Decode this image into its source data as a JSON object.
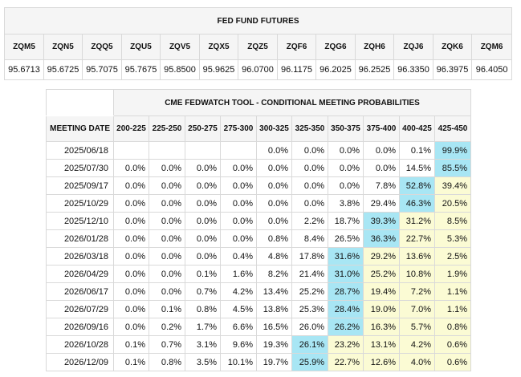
{
  "futures": {
    "title": "FED FUND FUTURES",
    "columns": [
      {
        "code": "ZQM5",
        "price": "95.6713"
      },
      {
        "code": "ZQN5",
        "price": "95.6725"
      },
      {
        "code": "ZQQ5",
        "price": "95.7075"
      },
      {
        "code": "ZQU5",
        "price": "95.7675"
      },
      {
        "code": "ZQV5",
        "price": "95.8500"
      },
      {
        "code": "ZQX5",
        "price": "95.9625"
      },
      {
        "code": "ZQZ5",
        "price": "96.0700"
      },
      {
        "code": "ZQF6",
        "price": "96.1175"
      },
      {
        "code": "ZQG6",
        "price": "96.2025"
      },
      {
        "code": "ZQH6",
        "price": "96.2525"
      },
      {
        "code": "ZQJ6",
        "price": "96.3350"
      },
      {
        "code": "ZQK6",
        "price": "96.3975"
      },
      {
        "code": "ZQM6",
        "price": "96.4050"
      }
    ]
  },
  "fedwatch": {
    "title": "CME FEDWATCH TOOL - CONDITIONAL MEETING PROBABILITIES",
    "date_header": "MEETING DATE",
    "ranges": [
      "200-225",
      "225-250",
      "250-275",
      "275-300",
      "300-325",
      "325-350",
      "350-375",
      "375-400",
      "400-425",
      "425-450"
    ],
    "highlight_colors": {
      "blue": "#a8e6f4",
      "yellow": "#fbfbd4"
    },
    "rows": [
      {
        "date": "2025/06/18",
        "values": [
          "",
          "",
          "",
          "",
          "0.0%",
          "0.0%",
          "0.0%",
          "0.0%",
          "0.1%",
          "99.9%"
        ],
        "hl": [
          "",
          "",
          "",
          "",
          "",
          "",
          "",
          "",
          "",
          "blue"
        ]
      },
      {
        "date": "2025/07/30",
        "values": [
          "0.0%",
          "0.0%",
          "0.0%",
          "0.0%",
          "0.0%",
          "0.0%",
          "0.0%",
          "0.0%",
          "14.5%",
          "85.5%"
        ],
        "hl": [
          "",
          "",
          "",
          "",
          "",
          "",
          "",
          "",
          "",
          "blue"
        ]
      },
      {
        "date": "2025/09/17",
        "values": [
          "0.0%",
          "0.0%",
          "0.0%",
          "0.0%",
          "0.0%",
          "0.0%",
          "0.0%",
          "7.8%",
          "52.8%",
          "39.4%"
        ],
        "hl": [
          "",
          "",
          "",
          "",
          "",
          "",
          "",
          "",
          "blue",
          "yellow"
        ]
      },
      {
        "date": "2025/10/29",
        "values": [
          "0.0%",
          "0.0%",
          "0.0%",
          "0.0%",
          "0.0%",
          "0.0%",
          "3.8%",
          "29.4%",
          "46.3%",
          "20.5%"
        ],
        "hl": [
          "",
          "",
          "",
          "",
          "",
          "",
          "",
          "",
          "blue",
          "yellow"
        ]
      },
      {
        "date": "2025/12/10",
        "values": [
          "0.0%",
          "0.0%",
          "0.0%",
          "0.0%",
          "0.0%",
          "2.2%",
          "18.7%",
          "39.3%",
          "31.2%",
          "8.5%"
        ],
        "hl": [
          "",
          "",
          "",
          "",
          "",
          "",
          "",
          "blue",
          "yellow",
          "yellow"
        ]
      },
      {
        "date": "2026/01/28",
        "values": [
          "0.0%",
          "0.0%",
          "0.0%",
          "0.0%",
          "0.8%",
          "8.4%",
          "26.5%",
          "36.3%",
          "22.7%",
          "5.3%"
        ],
        "hl": [
          "",
          "",
          "",
          "",
          "",
          "",
          "",
          "blue",
          "yellow",
          "yellow"
        ]
      },
      {
        "date": "2026/03/18",
        "values": [
          "0.0%",
          "0.0%",
          "0.0%",
          "0.4%",
          "4.8%",
          "17.8%",
          "31.6%",
          "29.2%",
          "13.6%",
          "2.5%"
        ],
        "hl": [
          "",
          "",
          "",
          "",
          "",
          "",
          "blue",
          "yellow",
          "yellow",
          "yellow"
        ]
      },
      {
        "date": "2026/04/29",
        "values": [
          "0.0%",
          "0.0%",
          "0.1%",
          "1.6%",
          "8.2%",
          "21.4%",
          "31.0%",
          "25.2%",
          "10.8%",
          "1.9%"
        ],
        "hl": [
          "",
          "",
          "",
          "",
          "",
          "",
          "blue",
          "yellow",
          "yellow",
          "yellow"
        ]
      },
      {
        "date": "2026/06/17",
        "values": [
          "0.0%",
          "0.0%",
          "0.7%",
          "4.2%",
          "13.4%",
          "25.2%",
          "28.7%",
          "19.4%",
          "7.2%",
          "1.1%"
        ],
        "hl": [
          "",
          "",
          "",
          "",
          "",
          "",
          "blue",
          "yellow",
          "yellow",
          "yellow"
        ]
      },
      {
        "date": "2026/07/29",
        "values": [
          "0.0%",
          "0.1%",
          "0.8%",
          "4.5%",
          "13.8%",
          "25.3%",
          "28.4%",
          "19.0%",
          "7.0%",
          "1.1%"
        ],
        "hl": [
          "",
          "",
          "",
          "",
          "",
          "",
          "blue",
          "yellow",
          "yellow",
          "yellow"
        ]
      },
      {
        "date": "2026/09/16",
        "values": [
          "0.0%",
          "0.2%",
          "1.7%",
          "6.6%",
          "16.5%",
          "26.0%",
          "26.2%",
          "16.3%",
          "5.7%",
          "0.8%"
        ],
        "hl": [
          "",
          "",
          "",
          "",
          "",
          "",
          "blue",
          "yellow",
          "yellow",
          "yellow"
        ]
      },
      {
        "date": "2026/10/28",
        "values": [
          "0.1%",
          "0.7%",
          "3.1%",
          "9.6%",
          "19.3%",
          "26.1%",
          "23.2%",
          "13.1%",
          "4.2%",
          "0.6%"
        ],
        "hl": [
          "",
          "",
          "",
          "",
          "",
          "blue",
          "yellow",
          "yellow",
          "yellow",
          "yellow"
        ]
      },
      {
        "date": "2026/12/09",
        "values": [
          "0.1%",
          "0.8%",
          "3.5%",
          "10.1%",
          "19.7%",
          "25.9%",
          "22.7%",
          "12.6%",
          "4.0%",
          "0.6%"
        ],
        "hl": [
          "",
          "",
          "",
          "",
          "",
          "blue",
          "yellow",
          "yellow",
          "yellow",
          "yellow"
        ]
      }
    ]
  }
}
